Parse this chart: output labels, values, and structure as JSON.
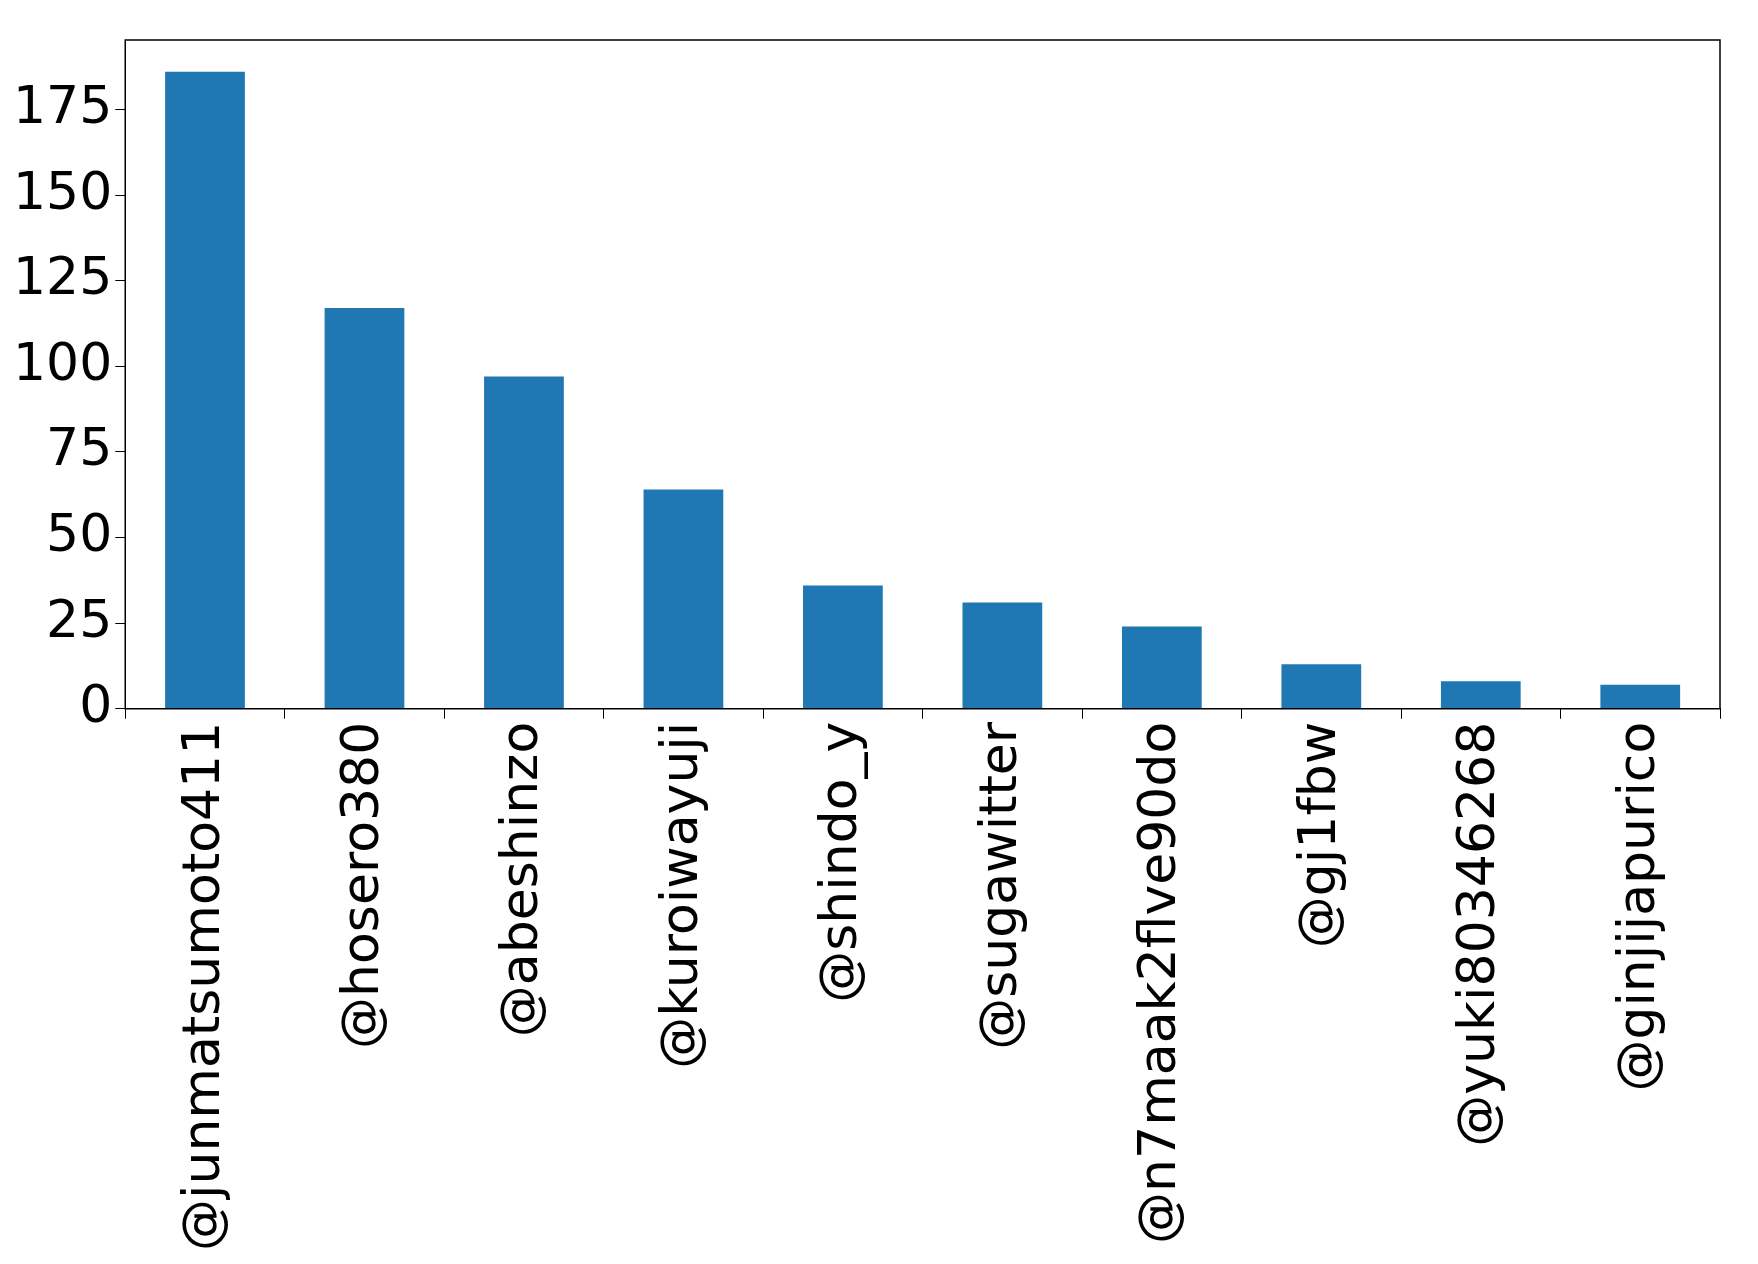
{
  "chart_data": {
    "type": "bar",
    "categories": [
      "@junmatsumoto411",
      "@hosero380",
      "@abeshinzo",
      "@kuroiwayuji",
      "@shindo_y",
      "@sugawitter",
      "@n7maak2flve90do",
      "@gj1fbw",
      "@yuki80346268",
      "@ginjijapurico"
    ],
    "values": [
      186,
      117,
      97,
      64,
      36,
      31,
      24,
      13,
      8,
      7
    ],
    "color": "#1f77b4",
    "ylim": [
      0,
      195.3
    ],
    "yticks": [
      0,
      25,
      50,
      75,
      100,
      125,
      150,
      175
    ]
  }
}
